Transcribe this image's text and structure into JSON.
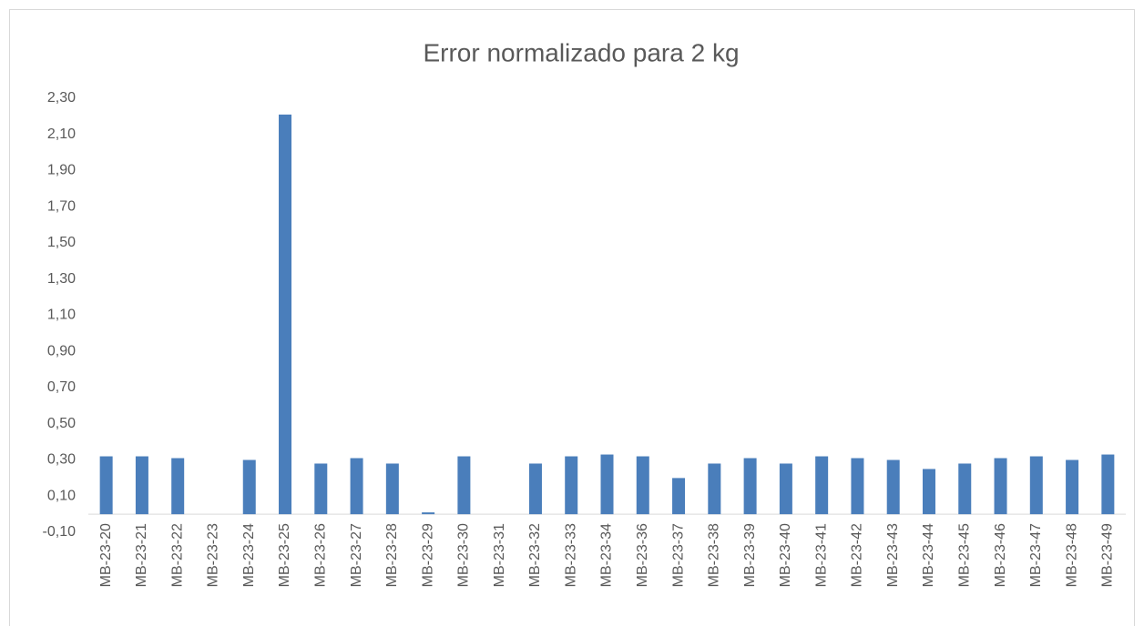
{
  "chart_data": {
    "type": "bar",
    "title": "Error normalizado para 2 kg",
    "categories": [
      "MB-23-20",
      "MB-23-21",
      "MB-23-22",
      "MB-23-23",
      "MB-23-24",
      "MB-23-25",
      "MB-23-26",
      "MB-23-27",
      "MB-23-28",
      "MB-23-29",
      "MB-23-30",
      "MB-23-31",
      "MB-23-32",
      "MB-23-33",
      "MB-23-34",
      "MB-23-36",
      "MB-23-37",
      "MB-23-38",
      "MB-23-39",
      "MB-23-40",
      "MB-23-41",
      "MB-23-42",
      "MB-23-43",
      "MB-23-44",
      "MB-23-45",
      "MB-23-46",
      "MB-23-47",
      "MB-23-48",
      "MB-23-49"
    ],
    "values": [
      0.32,
      0.32,
      0.31,
      0,
      0.3,
      2.21,
      0.28,
      0.31,
      0.28,
      0.01,
      0.32,
      0,
      0.28,
      0.32,
      0.33,
      0.32,
      0.2,
      0.28,
      0.31,
      0.28,
      0.32,
      0.31,
      0.3,
      0.25,
      0.28,
      0.31,
      0.32,
      0.3,
      0.33
    ],
    "color": "#4a7ebb",
    "ylim": [
      -0.1,
      2.3
    ],
    "yticks": [
      {
        "value": -0.1,
        "label": "-0,10"
      },
      {
        "value": 0.1,
        "label": "0,10"
      },
      {
        "value": 0.3,
        "label": "0,30"
      },
      {
        "value": 0.5,
        "label": "0,50"
      },
      {
        "value": 0.7,
        "label": "0,70"
      },
      {
        "value": 0.9,
        "label": "0,90"
      },
      {
        "value": 1.1,
        "label": "1,10"
      },
      {
        "value": 1.3,
        "label": "1,30"
      },
      {
        "value": 1.5,
        "label": "1,50"
      },
      {
        "value": 1.7,
        "label": "1,70"
      },
      {
        "value": 1.9,
        "label": "1,90"
      },
      {
        "value": 2.1,
        "label": "2,10"
      },
      {
        "value": 2.3,
        "label": "2,30"
      }
    ],
    "grid": false
  }
}
